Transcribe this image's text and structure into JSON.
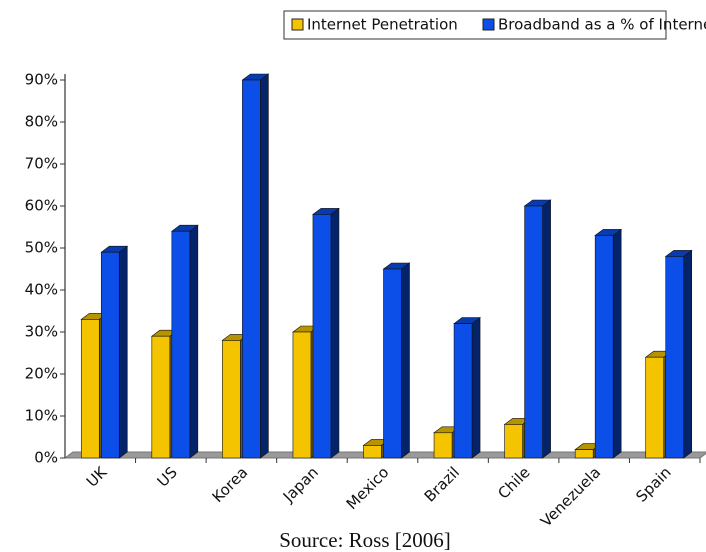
{
  "chart_data": {
    "type": "bar",
    "categories": [
      "UK",
      "US",
      "Korea",
      "Japan",
      "Mexico",
      "Brazil",
      "Chile",
      "Venezuela",
      "Spain"
    ],
    "series": [
      {
        "name": "Internet Penetration",
        "color": "#f5c400",
        "values": [
          33,
          29,
          28,
          30,
          3,
          6,
          8,
          2,
          24
        ]
      },
      {
        "name": "Broadband as a % of Internet Accounts",
        "color": "#0b4ee8",
        "values": [
          49,
          54,
          90,
          58,
          45,
          32,
          60,
          53,
          48
        ]
      }
    ],
    "ylim": [
      0,
      90
    ],
    "yticks": [
      {
        "value": 0,
        "label": "0%"
      },
      {
        "value": 10,
        "label": "10%"
      },
      {
        "value": 20,
        "label": "20%"
      },
      {
        "value": 30,
        "label": "30%"
      },
      {
        "value": 40,
        "label": "40%"
      },
      {
        "value": 50,
        "label": "50%"
      },
      {
        "value": 60,
        "label": "60%"
      },
      {
        "value": 70,
        "label": "70%"
      },
      {
        "value": 80,
        "label": "80%"
      },
      {
        "value": 90,
        "label": "90%"
      }
    ],
    "legend": "top",
    "source": "Source: Ross [2006]"
  }
}
